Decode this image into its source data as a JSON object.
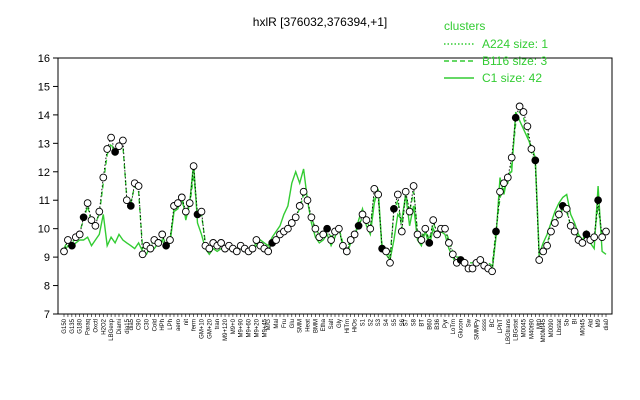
{
  "chart_data": {
    "type": "line",
    "title": "hxlR [376032,376394,+1]",
    "xlabel": "",
    "ylabel": "",
    "ylim": [
      7,
      16
    ],
    "yticks": [
      7,
      8,
      9,
      10,
      11,
      12,
      13,
      14,
      15,
      16
    ],
    "n_conditions": 139,
    "x_tick_labels": [
      "G150",
      "G135",
      "G180",
      "Paraq",
      "Oxctl",
      "H2O2",
      "LBGexp",
      "Diami",
      "dia15",
      "dia5",
      "C90",
      "C30",
      "Cold",
      "HPh",
      "LPh",
      "aero",
      "nit",
      "ferm",
      "GM+10",
      "GM+20",
      "tran",
      "M9+120",
      "M9+0",
      "M9+90",
      "M9+60",
      "M9+20",
      "M9+45",
      "M/G",
      "Mal",
      "Fru",
      "Glu",
      "SMM",
      "Heat",
      "BMM",
      "Etha",
      "Salt",
      "Gly",
      "HiTm",
      "HiOs",
      "S1",
      "S2",
      "S3",
      "S4",
      "S5",
      "S6",
      "S7",
      "S8",
      "BT",
      "B60",
      "B36",
      "Pyr",
      "LoTm",
      "Glucon",
      "Sw",
      "SMMPy",
      "ssss",
      "BC",
      "LPhT",
      "LBGtrans",
      "LBGstat",
      "M0045",
      "M40t90",
      "Mt0",
      "Mt0Mt45",
      "M0090",
      "Lbstat",
      "Sb",
      "Bl",
      "M0t45",
      "Ald",
      "M9",
      "dia0"
    ],
    "legend": {
      "title": "clusters",
      "position": "top-right",
      "entries": [
        {
          "name": "A224 size: 1",
          "style": "dotted"
        },
        {
          "name": "B116 size: 3",
          "style": "dashed"
        },
        {
          "name": "C1 size: 42",
          "style": "solid"
        }
      ]
    },
    "series": [
      {
        "name": "A224 size: 1",
        "role": "selected gene (points)",
        "values": [
          9.2,
          9.6,
          9.4,
          9.7,
          9.8,
          10.4,
          10.9,
          10.3,
          10.1,
          10.6,
          11.8,
          12.8,
          13.2,
          12.7,
          12.9,
          13.1,
          11.0,
          10.8,
          11.6,
          11.5,
          9.1,
          9.4,
          9.3,
          9.6,
          9.5,
          9.8,
          9.4,
          9.6,
          10.8,
          10.9,
          11.1,
          10.6,
          10.9,
          12.2,
          10.5,
          10.6,
          9.4,
          9.3,
          9.5,
          9.4,
          9.5,
          9.3,
          9.4,
          9.3,
          9.2,
          9.4,
          9.3,
          9.2,
          9.3,
          9.6,
          9.4,
          9.3,
          9.2,
          9.5,
          9.6,
          9.8,
          9.9,
          10.0,
          10.2,
          10.4,
          10.8,
          11.3,
          11.0,
          10.4,
          10.0,
          9.7,
          9.8,
          10.0,
          9.6,
          9.9,
          10.0,
          9.4,
          9.2,
          9.6,
          9.8,
          10.1,
          10.5,
          10.3,
          10.0,
          11.4,
          11.2,
          9.3,
          9.2,
          8.8,
          10.7,
          11.2,
          9.9,
          11.3,
          10.6,
          11.5,
          9.8,
          9.6,
          10.0,
          9.5,
          10.3,
          9.8,
          10.0,
          10.0,
          9.5,
          9.1,
          8.8,
          8.9,
          8.8,
          8.6,
          8.6,
          8.8,
          8.9,
          8.7,
          8.6,
          8.5,
          9.9,
          11.3,
          11.6,
          11.8,
          12.5,
          13.9,
          14.3,
          14.1,
          13.6,
          12.8,
          12.4,
          8.9,
          9.2,
          9.4,
          9.9,
          10.2,
          10.5,
          10.8,
          10.7,
          10.1,
          9.9,
          9.6,
          9.5,
          9.8,
          9.6,
          9.7,
          11.0,
          9.7,
          9.9
        ]
      },
      {
        "name": "B116 size: 3",
        "role": "cluster mean (dashed)",
        "values": [
          9.3,
          9.6,
          9.5,
          9.7,
          9.9,
          10.3,
          10.8,
          10.2,
          10.2,
          10.5,
          11.6,
          12.6,
          13.0,
          12.6,
          12.8,
          12.9,
          11.1,
          10.9,
          11.5,
          11.3,
          9.3,
          9.5,
          9.4,
          9.6,
          9.5,
          9.7,
          9.5,
          9.6,
          10.7,
          10.8,
          11.0,
          10.5,
          10.8,
          11.9,
          10.5,
          10.5,
          9.5,
          9.4,
          9.5,
          9.5,
          9.5,
          9.4,
          9.4,
          9.4,
          9.3,
          9.4,
          9.3,
          9.3,
          9.3,
          9.5,
          9.4,
          9.3,
          9.3,
          9.5,
          9.6,
          9.7,
          9.9,
          10.0,
          10.2,
          10.4,
          10.7,
          11.2,
          10.9,
          10.4,
          10.0,
          9.8,
          9.8,
          10.0,
          9.7,
          9.9,
          10.0,
          9.5,
          9.3,
          9.6,
          9.8,
          10.1,
          10.4,
          10.3,
          10.0,
          11.2,
          11.1,
          9.4,
          9.3,
          9.0,
          10.6,
          11.0,
          10.0,
          11.2,
          10.6,
          11.3,
          9.9,
          9.7,
          10.0,
          9.6,
          10.2,
          9.9,
          10.0,
          10.0,
          9.6,
          9.2,
          9.0,
          9.0,
          8.9,
          8.8,
          8.8,
          8.9,
          9.0,
          8.8,
          8.8,
          8.7,
          9.9,
          11.1,
          11.4,
          11.6,
          12.3,
          13.7,
          14.1,
          13.9,
          13.4,
          12.7,
          12.3,
          9.0,
          9.3,
          9.5,
          9.9,
          10.2,
          10.4,
          10.7,
          10.6,
          10.1,
          9.9,
          9.7,
          9.6,
          9.8,
          9.7,
          9.7,
          10.8,
          9.7,
          9.9
        ]
      },
      {
        "name": "C1 size: 42",
        "role": "cluster mean (solid)",
        "values": [
          9.2,
          9.4,
          9.3,
          9.5,
          9.6,
          9.6,
          9.7,
          9.4,
          9.6,
          9.8,
          10.5,
          9.4,
          9.7,
          9.5,
          9.8,
          9.6,
          9.5,
          9.4,
          9.3,
          9.5,
          9.2,
          9.1,
          9.4,
          9.3,
          9.5,
          9.6,
          9.3,
          9.5,
          10.6,
          10.7,
          11.2,
          10.3,
          10.9,
          12.3,
          10.2,
          9.8,
          9.3,
          9.1,
          9.3,
          9.2,
          9.3,
          9.2,
          9.3,
          9.2,
          9.2,
          9.3,
          9.2,
          9.1,
          9.2,
          9.4,
          9.6,
          9.5,
          9.4,
          9.7,
          9.9,
          10.1,
          10.5,
          10.8,
          11.6,
          12.0,
          11.6,
          12.1,
          11.0,
          10.2,
          9.7,
          9.5,
          9.6,
          9.8,
          9.4,
          9.7,
          10.1,
          9.3,
          9.1,
          9.5,
          9.7,
          10.3,
          10.7,
          10.1,
          9.8,
          10.9,
          11.4,
          9.2,
          9.1,
          8.9,
          9.6,
          10.5,
          10.3,
          11.2,
          10.1,
          10.8,
          9.6,
          9.4,
          9.9,
          9.4,
          10.0,
          9.7,
          9.9,
          9.8,
          9.3,
          9.0,
          8.7,
          8.9,
          8.8,
          8.6,
          8.6,
          8.7,
          8.8,
          8.6,
          8.5,
          8.5,
          9.7,
          11.8,
          11.2,
          11.9,
          12.0,
          14.1,
          13.8,
          13.5,
          13.2,
          12.9,
          12.5,
          9.1,
          9.5,
          9.8,
          10.2,
          10.6,
          10.9,
          11.1,
          11.2,
          10.5,
          10.2,
          9.8,
          9.6,
          9.9,
          9.5,
          9.3,
          11.5,
          9.2,
          9.1
        ]
      }
    ],
    "highlighted_points": [
      {
        "index": 2,
        "value": 9.6
      },
      {
        "index": 5,
        "value": 10.1
      },
      {
        "index": 13,
        "value": 12.9
      },
      {
        "index": 17,
        "value": 11.0
      },
      {
        "index": 26,
        "value": 9.2
      },
      {
        "index": 34,
        "value": 12.2
      },
      {
        "index": 53,
        "value": 9.4
      },
      {
        "index": 67,
        "value": 9.8
      },
      {
        "index": 75,
        "value": 10.1
      },
      {
        "index": 81,
        "value": 11.3
      },
      {
        "index": 84,
        "value": 8.8
      },
      {
        "index": 93,
        "value": 10.3
      },
      {
        "index": 101,
        "value": 8.6
      },
      {
        "index": 110,
        "value": 8.8
      },
      {
        "index": 115,
        "value": 14.3
      },
      {
        "index": 120,
        "value": 12.3
      },
      {
        "index": 127,
        "value": 10.7
      },
      {
        "index": 133,
        "value": 9.5
      },
      {
        "index": 136,
        "value": 11.0
      }
    ],
    "colors": {
      "series": "#33cc33",
      "points_fill_open": "#ffffff",
      "points_fill_solid": "#000000",
      "axis": "#000000"
    }
  }
}
